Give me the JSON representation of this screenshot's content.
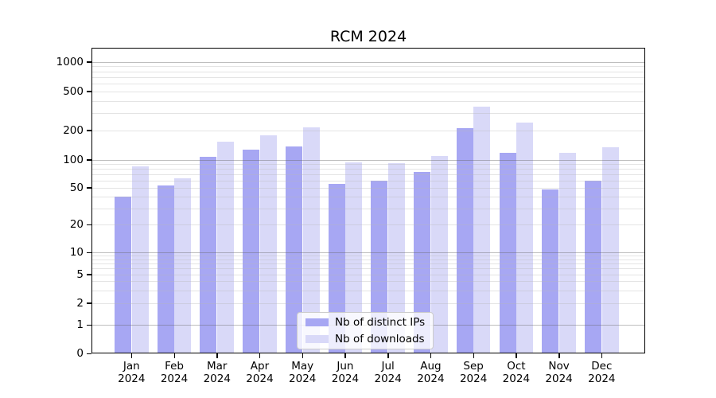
{
  "chart_data": {
    "type": "bar",
    "title": "RCM 2024",
    "categories": [
      "Jan",
      "Feb",
      "Mar",
      "Apr",
      "May",
      "Jun",
      "Jul",
      "Aug",
      "Sep",
      "Oct",
      "Nov",
      "Dec"
    ],
    "category_line2": "2024",
    "series": [
      {
        "name": "Nb of distinct IPs",
        "color": "#a7a7f3",
        "values": [
          40,
          53,
          108,
          126,
          136,
          55,
          60,
          74,
          210,
          118,
          48,
          59
        ]
      },
      {
        "name": "Nb of downloads",
        "color": "#d9d9f8",
        "values": [
          85,
          63,
          154,
          178,
          213,
          93,
          92,
          110,
          350,
          238,
          118,
          135
        ]
      }
    ],
    "yscale": "symlog",
    "y_ticks": [
      0,
      1,
      2,
      5,
      10,
      20,
      50,
      100,
      200,
      500,
      1000
    ],
    "ylim": [
      0,
      1400
    ],
    "xlabel": "",
    "ylabel": "",
    "grid": {
      "major": true,
      "minor": true
    },
    "legend_position": "lower center"
  },
  "colors": {
    "background": "#ffffff",
    "spine": "#000000",
    "major_grid": "#b4b4b4",
    "minor_grid": "#e3e3e3",
    "bar_ips": "#a7a7f3",
    "bar_downloads": "#d9d9f8"
  }
}
